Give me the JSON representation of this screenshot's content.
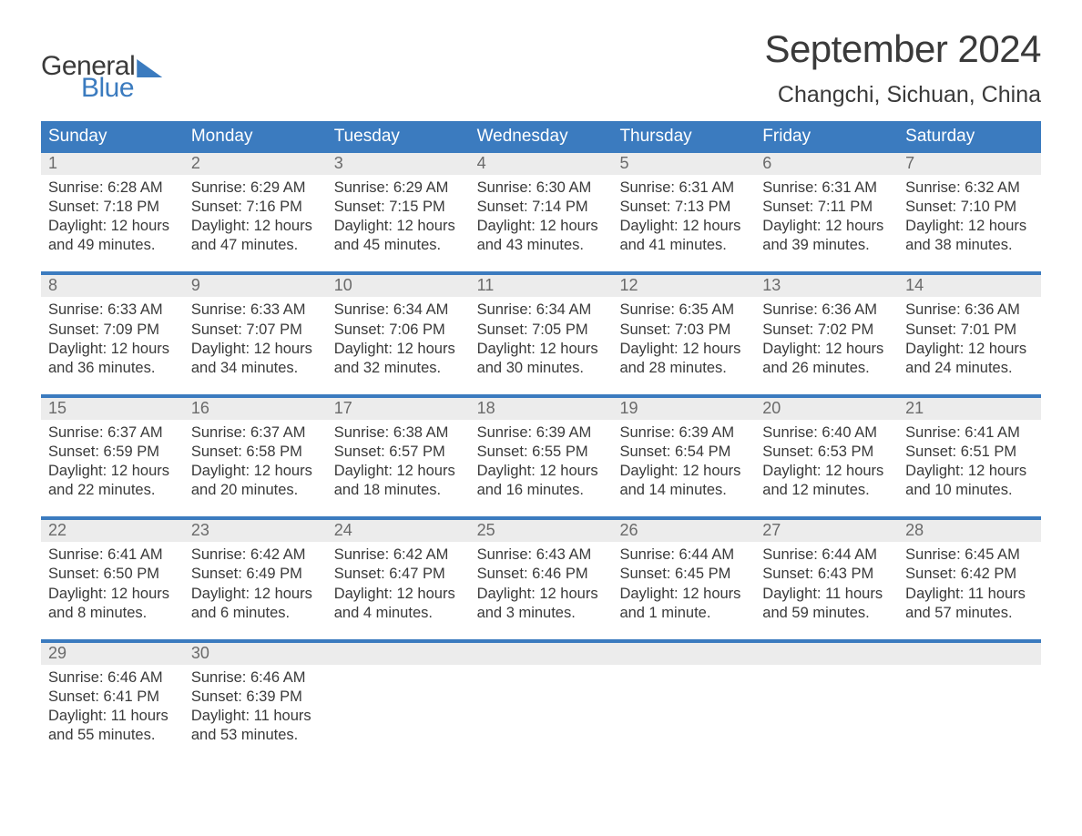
{
  "logo": {
    "general": "General",
    "blue": "Blue"
  },
  "title": "September 2024",
  "location": "Changchi, Sichuan, China",
  "day_headers": [
    "Sunday",
    "Monday",
    "Tuesday",
    "Wednesday",
    "Thursday",
    "Friday",
    "Saturday"
  ],
  "colors": {
    "header_bg": "#3b7bbf",
    "daynum_bg": "#ececec",
    "text": "#3a3a3a",
    "muted": "#6a6a6a",
    "accent": "#3b7bbf"
  },
  "weeks": [
    [
      {
        "n": "1",
        "sr": "6:28 AM",
        "ss": "7:18 PM",
        "dl": "12 hours and 49 minutes."
      },
      {
        "n": "2",
        "sr": "6:29 AM",
        "ss": "7:16 PM",
        "dl": "12 hours and 47 minutes."
      },
      {
        "n": "3",
        "sr": "6:29 AM",
        "ss": "7:15 PM",
        "dl": "12 hours and 45 minutes."
      },
      {
        "n": "4",
        "sr": "6:30 AM",
        "ss": "7:14 PM",
        "dl": "12 hours and 43 minutes."
      },
      {
        "n": "5",
        "sr": "6:31 AM",
        "ss": "7:13 PM",
        "dl": "12 hours and 41 minutes."
      },
      {
        "n": "6",
        "sr": "6:31 AM",
        "ss": "7:11 PM",
        "dl": "12 hours and 39 minutes."
      },
      {
        "n": "7",
        "sr": "6:32 AM",
        "ss": "7:10 PM",
        "dl": "12 hours and 38 minutes."
      }
    ],
    [
      {
        "n": "8",
        "sr": "6:33 AM",
        "ss": "7:09 PM",
        "dl": "12 hours and 36 minutes."
      },
      {
        "n": "9",
        "sr": "6:33 AM",
        "ss": "7:07 PM",
        "dl": "12 hours and 34 minutes."
      },
      {
        "n": "10",
        "sr": "6:34 AM",
        "ss": "7:06 PM",
        "dl": "12 hours and 32 minutes."
      },
      {
        "n": "11",
        "sr": "6:34 AM",
        "ss": "7:05 PM",
        "dl": "12 hours and 30 minutes."
      },
      {
        "n": "12",
        "sr": "6:35 AM",
        "ss": "7:03 PM",
        "dl": "12 hours and 28 minutes."
      },
      {
        "n": "13",
        "sr": "6:36 AM",
        "ss": "7:02 PM",
        "dl": "12 hours and 26 minutes."
      },
      {
        "n": "14",
        "sr": "6:36 AM",
        "ss": "7:01 PM",
        "dl": "12 hours and 24 minutes."
      }
    ],
    [
      {
        "n": "15",
        "sr": "6:37 AM",
        "ss": "6:59 PM",
        "dl": "12 hours and 22 minutes."
      },
      {
        "n": "16",
        "sr": "6:37 AM",
        "ss": "6:58 PM",
        "dl": "12 hours and 20 minutes."
      },
      {
        "n": "17",
        "sr": "6:38 AM",
        "ss": "6:57 PM",
        "dl": "12 hours and 18 minutes."
      },
      {
        "n": "18",
        "sr": "6:39 AM",
        "ss": "6:55 PM",
        "dl": "12 hours and 16 minutes."
      },
      {
        "n": "19",
        "sr": "6:39 AM",
        "ss": "6:54 PM",
        "dl": "12 hours and 14 minutes."
      },
      {
        "n": "20",
        "sr": "6:40 AM",
        "ss": "6:53 PM",
        "dl": "12 hours and 12 minutes."
      },
      {
        "n": "21",
        "sr": "6:41 AM",
        "ss": "6:51 PM",
        "dl": "12 hours and 10 minutes."
      }
    ],
    [
      {
        "n": "22",
        "sr": "6:41 AM",
        "ss": "6:50 PM",
        "dl": "12 hours and 8 minutes."
      },
      {
        "n": "23",
        "sr": "6:42 AM",
        "ss": "6:49 PM",
        "dl": "12 hours and 6 minutes."
      },
      {
        "n": "24",
        "sr": "6:42 AM",
        "ss": "6:47 PM",
        "dl": "12 hours and 4 minutes."
      },
      {
        "n": "25",
        "sr": "6:43 AM",
        "ss": "6:46 PM",
        "dl": "12 hours and 3 minutes."
      },
      {
        "n": "26",
        "sr": "6:44 AM",
        "ss": "6:45 PM",
        "dl": "12 hours and 1 minute."
      },
      {
        "n": "27",
        "sr": "6:44 AM",
        "ss": "6:43 PM",
        "dl": "11 hours and 59 minutes."
      },
      {
        "n": "28",
        "sr": "6:45 AM",
        "ss": "6:42 PM",
        "dl": "11 hours and 57 minutes."
      }
    ],
    [
      {
        "n": "29",
        "sr": "6:46 AM",
        "ss": "6:41 PM",
        "dl": "11 hours and 55 minutes."
      },
      {
        "n": "30",
        "sr": "6:46 AM",
        "ss": "6:39 PM",
        "dl": "11 hours and 53 minutes."
      },
      {
        "n": "",
        "sr": "",
        "ss": "",
        "dl": ""
      },
      {
        "n": "",
        "sr": "",
        "ss": "",
        "dl": ""
      },
      {
        "n": "",
        "sr": "",
        "ss": "",
        "dl": ""
      },
      {
        "n": "",
        "sr": "",
        "ss": "",
        "dl": ""
      },
      {
        "n": "",
        "sr": "",
        "ss": "",
        "dl": ""
      }
    ]
  ],
  "labels": {
    "sunrise": "Sunrise: ",
    "sunset": "Sunset: ",
    "daylight": "Daylight: "
  }
}
